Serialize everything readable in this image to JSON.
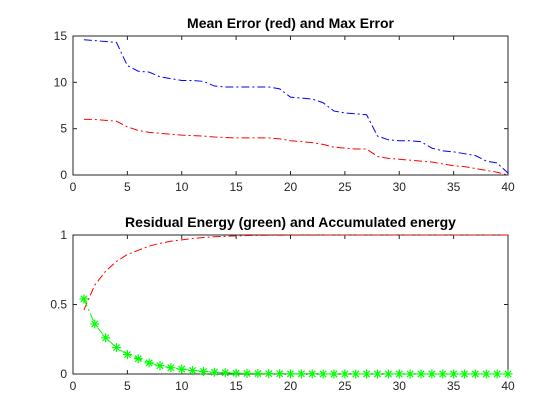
{
  "chart_data": [
    {
      "type": "line",
      "title": "Mean Error (red) and Max Error",
      "xlabel": "",
      "ylabel": "",
      "xlim": [
        0,
        40
      ],
      "ylim": [
        0,
        15
      ],
      "xticks": [
        0,
        5,
        10,
        15,
        20,
        25,
        30,
        35,
        40
      ],
      "yticks": [
        0,
        5,
        10,
        15
      ],
      "grid": false,
      "series": [
        {
          "color": "#ff0000",
          "line_style": "dash-dot",
          "x": [
            1,
            2,
            3,
            4,
            5,
            6,
            7,
            8,
            9,
            10,
            11,
            12,
            13,
            14,
            15,
            16,
            17,
            18,
            19,
            20,
            21,
            22,
            23,
            24,
            25,
            26,
            27,
            28,
            29,
            30,
            31,
            32,
            33,
            34,
            35,
            36,
            37,
            38,
            39,
            40
          ],
          "y": [
            6.0,
            6.0,
            5.9,
            5.8,
            5.2,
            4.8,
            4.6,
            4.5,
            4.4,
            4.3,
            4.25,
            4.2,
            4.1,
            4.05,
            4.0,
            4.0,
            4.0,
            4.0,
            3.9,
            3.7,
            3.6,
            3.5,
            3.3,
            3.0,
            2.9,
            2.8,
            2.8,
            2.0,
            1.8,
            1.7,
            1.6,
            1.5,
            1.4,
            1.2,
            1.0,
            0.9,
            0.7,
            0.5,
            0.3,
            0.0
          ]
        },
        {
          "color": "#0000ff",
          "line_style": "dash-dot",
          "x": [
            1,
            2,
            3,
            4,
            5,
            6,
            7,
            8,
            9,
            10,
            11,
            12,
            13,
            14,
            15,
            16,
            17,
            18,
            19,
            20,
            21,
            22,
            23,
            24,
            25,
            26,
            27,
            28,
            29,
            30,
            31,
            32,
            33,
            34,
            35,
            36,
            37,
            38,
            39,
            40
          ],
          "y": [
            14.6,
            14.5,
            14.4,
            14.3,
            11.8,
            11.2,
            11.1,
            10.6,
            10.4,
            10.2,
            10.2,
            10.1,
            9.6,
            9.5,
            9.5,
            9.5,
            9.5,
            9.5,
            9.3,
            8.4,
            8.3,
            8.2,
            7.8,
            6.9,
            6.7,
            6.6,
            6.5,
            4.2,
            3.8,
            3.7,
            3.7,
            3.6,
            2.9,
            2.6,
            2.5,
            2.3,
            2.1,
            1.5,
            1.3,
            0.2
          ]
        }
      ]
    },
    {
      "type": "line",
      "title": "Residual Energy (green) and Accumulated energy",
      "xlabel": "",
      "ylabel": "",
      "xlim": [
        0,
        40
      ],
      "ylim": [
        0,
        1
      ],
      "xticks": [
        0,
        5,
        10,
        15,
        20,
        25,
        30,
        35,
        40
      ],
      "yticks": [
        0,
        0.5,
        1
      ],
      "grid": false,
      "series": [
        {
          "color": "#ff0000",
          "line_style": "dash-dot",
          "x": [
            1,
            2,
            3,
            4,
            5,
            6,
            7,
            8,
            9,
            10,
            11,
            12,
            13,
            14,
            15,
            16,
            17,
            18,
            19,
            20,
            21,
            22,
            23,
            24,
            25,
            26,
            27,
            28,
            29,
            30,
            31,
            32,
            33,
            34,
            35,
            36,
            37,
            38,
            39,
            40
          ],
          "y": [
            0.46,
            0.64,
            0.74,
            0.81,
            0.86,
            0.89,
            0.92,
            0.94,
            0.955,
            0.965,
            0.975,
            0.982,
            0.987,
            0.991,
            0.994,
            0.996,
            0.997,
            0.998,
            0.998,
            0.999,
            0.999,
            0.999,
            1.0,
            1.0,
            1.0,
            1.0,
            1.0,
            1.0,
            1.0,
            1.0,
            1.0,
            1.0,
            1.0,
            1.0,
            1.0,
            1.0,
            1.0,
            1.0,
            1.0,
            1.0
          ]
        },
        {
          "color": "#00ff00",
          "line_style": "dash-dot",
          "marker": "asterisk",
          "x": [
            1,
            2,
            3,
            4,
            5,
            6,
            7,
            8,
            9,
            10,
            11,
            12,
            13,
            14,
            15,
            16,
            17,
            18,
            19,
            20,
            21,
            22,
            23,
            24,
            25,
            26,
            27,
            28,
            29,
            30,
            31,
            32,
            33,
            34,
            35,
            36,
            37,
            38,
            39,
            40
          ],
          "y": [
            0.54,
            0.36,
            0.26,
            0.19,
            0.14,
            0.11,
            0.08,
            0.06,
            0.045,
            0.035,
            0.025,
            0.018,
            0.013,
            0.009,
            0.006,
            0.004,
            0.003,
            0.002,
            0.002,
            0.001,
            0.001,
            0.001,
            0.0,
            0.0,
            0.0,
            0.0,
            0.0,
            0.0,
            0.0,
            0.0,
            0.0,
            0.0,
            0.0,
            0.0,
            0.0,
            0.0,
            0.0,
            0.0,
            0.0,
            0.0
          ]
        }
      ]
    }
  ]
}
